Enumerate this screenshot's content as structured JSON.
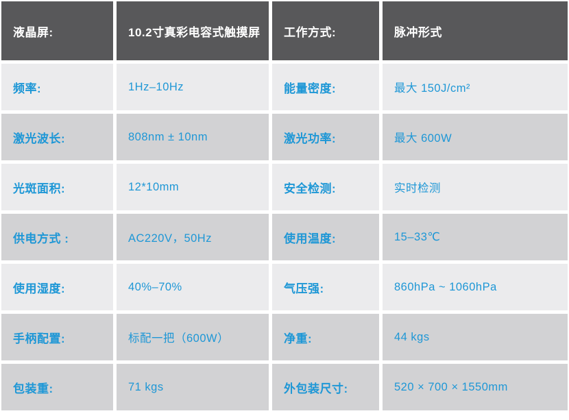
{
  "colors": {
    "header_bg": "#58585a",
    "header_text": "#ffffff",
    "row_light": "#ebebed",
    "row_dark": "#d2d2d4",
    "accent_blue": "#1e97d6",
    "gap": "#ffffff"
  },
  "table": {
    "header": {
      "label1": "液晶屏:",
      "value1": "10.2寸真彩电容式触摸屏",
      "label2": "工作方式:",
      "value2": "脉冲形式"
    },
    "rows": [
      {
        "label1": "频率:",
        "value1": "1Hz–10Hz",
        "label2": "能量密度:",
        "value2": "最大 150J/cm²"
      },
      {
        "label1": "激光波长:",
        "value1": "808nm ± 10nm",
        "label2": "激光功率:",
        "value2": "最大 600W"
      },
      {
        "label1": "光斑面积:",
        "value1": "12*10mm",
        "label2": "安全检测:",
        "value2": "实时检测"
      },
      {
        "label1": "供电方式 :",
        "value1": "AC220V，50Hz",
        "label2": "使用温度:",
        "value2": "15–33℃"
      },
      {
        "label1": "使用湿度:",
        "value1": "40%–70%",
        "label2": "气压强:",
        "value2": "860hPa ~ 1060hPa"
      },
      {
        "label1": "手柄配置:",
        "value1": "标配一把（600W）",
        "label2": "净重:",
        "value2": "44 kgs"
      },
      {
        "label1": "包装重:",
        "value1": "71 kgs",
        "label2": "外包装尺寸:",
        "value2": "520 × 700 × 1550mm"
      }
    ]
  }
}
